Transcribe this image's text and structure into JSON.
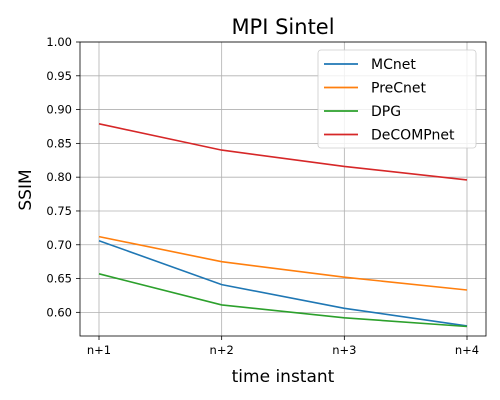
{
  "chart_data": {
    "type": "line",
    "title": "MPI Sintel",
    "xlabel": "time instant",
    "ylabel": "SSIM",
    "categories": [
      "n+1",
      "n+2",
      "n+3",
      "n+4"
    ],
    "ylim": [
      0.565,
      1.0
    ],
    "yticks": [
      "0.60",
      "0.65",
      "0.70",
      "0.75",
      "0.80",
      "0.85",
      "0.90",
      "0.95",
      "1.00"
    ],
    "grid": true,
    "legend_position": "top-right",
    "series": [
      {
        "name": "MCnet",
        "color": "#1f77b4",
        "values": [
          0.706,
          0.641,
          0.606,
          0.58
        ]
      },
      {
        "name": "PreCnet",
        "color": "#ff7f0e",
        "values": [
          0.712,
          0.675,
          0.652,
          0.633
        ]
      },
      {
        "name": "DPG",
        "color": "#2ca02c",
        "values": [
          0.657,
          0.611,
          0.592,
          0.579
        ]
      },
      {
        "name": "DeCOMPnet",
        "color": "#d62728",
        "values": [
          0.879,
          0.84,
          0.816,
          0.796
        ]
      }
    ]
  }
}
